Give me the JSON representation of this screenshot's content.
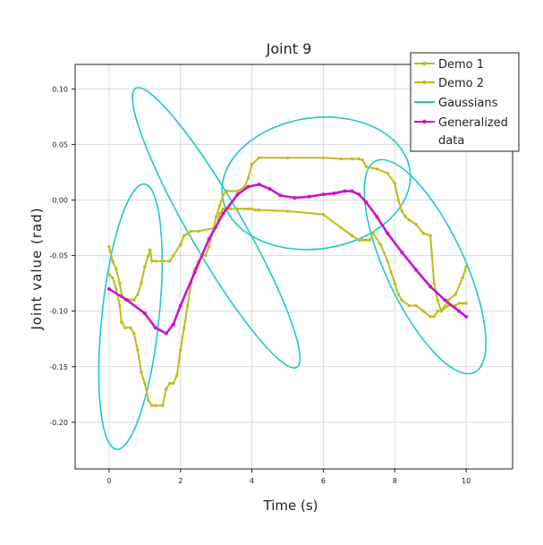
{
  "chart_data": {
    "type": "line",
    "title": "Joint 9",
    "xlabel": "Time (s)",
    "ylabel": "Joint value (rad)",
    "xlim": [
      -0.95,
      11.3
    ],
    "ylim": [
      -0.242,
      0.122
    ],
    "x_ticks": [
      0,
      2,
      4,
      6,
      8,
      10
    ],
    "y_ticks": [
      -0.2,
      -0.15,
      -0.1,
      -0.05,
      0.0,
      0.05,
      0.1
    ],
    "x_tick_labels": [
      "0",
      "2",
      "4",
      "6",
      "8",
      "10"
    ],
    "y_tick_labels": [
      "-0.20",
      "-0.15",
      "-0.10",
      "-0.05",
      "0.00",
      "0.05",
      "0.10"
    ],
    "grid": true,
    "legend_position": "top-right",
    "series": [
      {
        "name": "Demo 1",
        "color": "#bdbd1a",
        "marker": "dot",
        "x": [
          0.0,
          0.1,
          0.2,
          0.3,
          0.35,
          0.45,
          0.55,
          0.6,
          0.7,
          0.8,
          0.9,
          1.0,
          1.1,
          1.15,
          1.2,
          1.3,
          1.5,
          1.7,
          1.8,
          2.0,
          2.1,
          2.2,
          2.3,
          2.5,
          3.0,
          3.1,
          3.2,
          3.4,
          3.6,
          3.8,
          3.9,
          4.0,
          4.1,
          4.2,
          5.0,
          6.0,
          6.5,
          6.8,
          7.0,
          7.1,
          7.2,
          7.3,
          7.4,
          7.6,
          7.8,
          7.9,
          8.0,
          8.1,
          8.2,
          8.4,
          8.6,
          8.8,
          9.0,
          9.1,
          9.2,
          9.3,
          9.5,
          9.7,
          9.9,
          10.0
        ],
        "y": [
          -0.042,
          -0.055,
          -0.062,
          -0.075,
          -0.085,
          -0.09,
          -0.09,
          -0.09,
          -0.09,
          -0.085,
          -0.075,
          -0.06,
          -0.05,
          -0.045,
          -0.055,
          -0.055,
          -0.055,
          -0.055,
          -0.05,
          -0.04,
          -0.032,
          -0.03,
          -0.028,
          -0.028,
          -0.025,
          -0.012,
          -0.008,
          -0.008,
          -0.008,
          -0.008,
          -0.008,
          -0.008,
          -0.009,
          -0.009,
          -0.01,
          -0.013,
          -0.025,
          -0.032,
          -0.036,
          -0.036,
          -0.036,
          -0.036,
          -0.03,
          -0.04,
          -0.055,
          -0.065,
          -0.075,
          -0.085,
          -0.09,
          -0.095,
          -0.095,
          -0.1,
          -0.105,
          -0.105,
          -0.1,
          -0.1,
          -0.09,
          -0.085,
          -0.07,
          -0.06
        ]
      },
      {
        "name": "Demo 2",
        "color": "#bdbd1a",
        "marker": "dot",
        "x": [
          0.0,
          0.1,
          0.2,
          0.3,
          0.35,
          0.45,
          0.6,
          0.7,
          0.8,
          0.9,
          1.0,
          1.1,
          1.2,
          1.3,
          1.5,
          1.6,
          1.7,
          1.8,
          1.9,
          2.0,
          2.1,
          2.2,
          2.3,
          2.4,
          2.5,
          2.6,
          2.7,
          2.8,
          3.0,
          3.1,
          3.2,
          3.3,
          3.6,
          3.8,
          3.9,
          4.0,
          4.2,
          5.0,
          6.0,
          6.5,
          6.8,
          7.0,
          7.1,
          7.2,
          7.5,
          7.8,
          8.0,
          8.1,
          8.2,
          8.3,
          8.4,
          8.6,
          8.8,
          9.0,
          9.1,
          9.2,
          9.3,
          9.5,
          9.7,
          9.8,
          9.9,
          10.0
        ],
        "y": [
          -0.067,
          -0.07,
          -0.08,
          -0.095,
          -0.11,
          -0.115,
          -0.115,
          -0.12,
          -0.135,
          -0.155,
          -0.165,
          -0.18,
          -0.185,
          -0.185,
          -0.185,
          -0.17,
          -0.165,
          -0.165,
          -0.158,
          -0.135,
          -0.115,
          -0.095,
          -0.075,
          -0.062,
          -0.055,
          -0.05,
          -0.05,
          -0.042,
          -0.015,
          -0.005,
          0.005,
          0.008,
          0.008,
          0.012,
          0.02,
          0.032,
          0.038,
          0.038,
          0.038,
          0.037,
          0.037,
          0.037,
          0.036,
          0.03,
          0.028,
          0.024,
          0.015,
          0.0,
          -0.01,
          -0.015,
          -0.018,
          -0.022,
          -0.03,
          -0.032,
          -0.075,
          -0.09,
          -0.1,
          -0.095,
          -0.095,
          -0.093,
          -0.093,
          -0.093
        ]
      },
      {
        "name": "Generalized data",
        "color": "#cc11cc",
        "marker": "dot",
        "x": [
          0.0,
          0.5,
          1.0,
          1.3,
          1.6,
          1.8,
          2.0,
          2.4,
          2.8,
          3.2,
          3.6,
          3.9,
          4.2,
          4.5,
          4.8,
          5.2,
          5.6,
          6.0,
          6.3,
          6.6,
          6.8,
          7.0,
          7.2,
          7.5,
          7.8,
          8.2,
          8.6,
          9.0,
          9.4,
          9.8,
          10.0
        ],
        "y": [
          -0.08,
          -0.09,
          -0.102,
          -0.115,
          -0.12,
          -0.112,
          -0.095,
          -0.065,
          -0.035,
          -0.012,
          0.005,
          0.012,
          0.014,
          0.01,
          0.004,
          0.002,
          0.003,
          0.005,
          0.006,
          0.008,
          0.008,
          0.005,
          -0.002,
          -0.015,
          -0.03,
          -0.047,
          -0.063,
          -0.078,
          -0.09,
          -0.1,
          -0.105
        ]
      }
    ],
    "gaussians": {
      "name": "Gaussians",
      "color": "#1ec8c8",
      "ellipses": [
        {
          "center": [
            0.6,
            -0.105
          ],
          "width": 1.6,
          "height": 0.24,
          "angle_deg": -6
        },
        {
          "center": [
            3.0,
            -0.025
          ],
          "width": 1.5,
          "height": 0.29,
          "angle_deg": 30
        },
        {
          "center": [
            5.8,
            0.015
          ],
          "width": 5.3,
          "height": 0.118,
          "angle_deg": 8
        },
        {
          "center": [
            8.85,
            -0.06
          ],
          "width": 2.2,
          "height": 0.21,
          "angle_deg": 25
        }
      ]
    }
  },
  "legend": [
    {
      "label": "Demo 1",
      "kind": "line-dot",
      "color": "#bdbd1a"
    },
    {
      "label": "Demo 2",
      "kind": "line-dot",
      "color": "#bdbd1a"
    },
    {
      "label": "Gaussians",
      "kind": "line",
      "color": "#1ec8c8"
    },
    {
      "label": "Generalized",
      "label2": "data",
      "kind": "line-dot",
      "color": "#cc11cc"
    }
  ]
}
